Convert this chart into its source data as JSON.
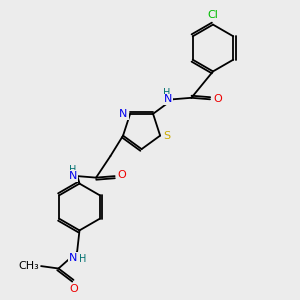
{
  "bg_color": "#ececec",
  "atom_colors": {
    "C": "#000000",
    "N": "#0000ee",
    "O": "#ee0000",
    "S": "#ccaa00",
    "Cl": "#00bb00",
    "H": "#007070"
  },
  "lw": 1.3,
  "fs": 8.0
}
